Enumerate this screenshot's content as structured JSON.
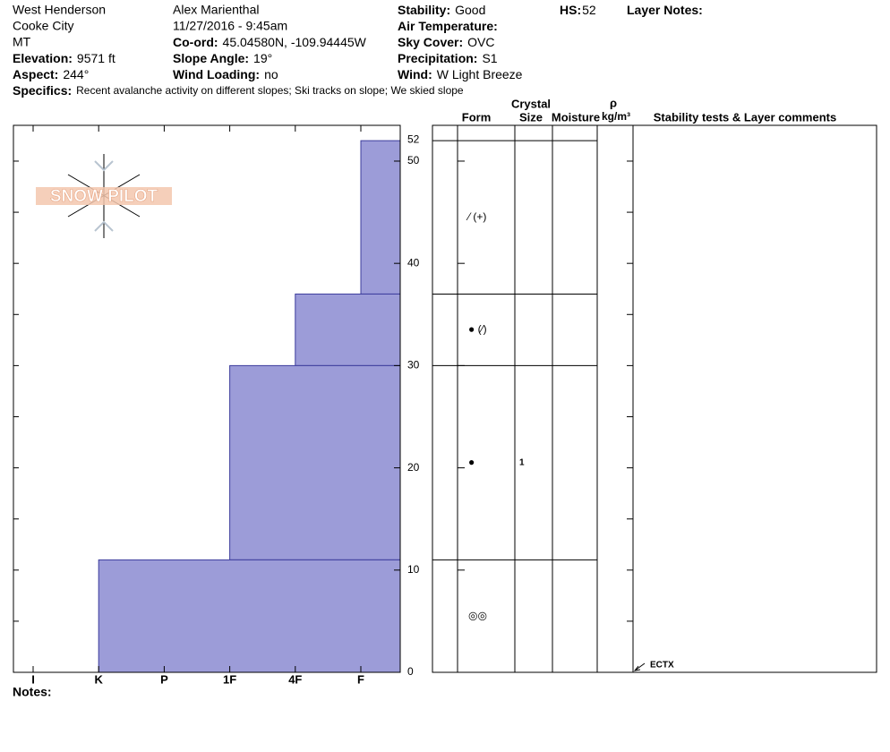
{
  "header": {
    "plain": [
      "West Henderson",
      "Cooke City",
      "MT",
      "Alex Marienthal",
      "11/27/2016 - 9:45am"
    ],
    "fields": [
      {
        "label": "Elevation:",
        "value": "9571 ft"
      },
      {
        "label": "Aspect:",
        "value": "244°"
      },
      {
        "label": "Co-ord:",
        "value": "45.04580N, -109.94445W"
      },
      {
        "label": "Slope Angle:",
        "value": "19°"
      },
      {
        "label": "Wind Loading:",
        "value": "no"
      },
      {
        "label": "Stability:",
        "value": "Good"
      },
      {
        "label": "Air Temperature:"
      },
      {
        "label": "Sky Cover:",
        "value": "OVC"
      },
      {
        "label": "Precipitation:",
        "value": "S1"
      },
      {
        "label": "Wind:",
        "value": "W Light Breeze"
      },
      {
        "label": "HS:",
        "value": "52"
      },
      {
        "label": "Layer Notes:"
      }
    ],
    "specifics": {
      "label": "Specifics:",
      "value": "Recent avalanche activity on different slopes;  Ski tracks on slope;  We skied slope"
    }
  },
  "logo": "SNOW PILOT",
  "notes_label": "Notes:",
  "columns": {
    "crystal": "Crystal",
    "form": "Form",
    "size": "Size",
    "moisture": "Moisture",
    "rho": "ρ",
    "density_unit": "kg/m³",
    "comments": "Stability tests & Layer comments"
  },
  "chart_data": {
    "type": "snow-profile",
    "categories": [
      "I",
      "K",
      "P",
      "1F",
      "4F",
      "F"
    ],
    "ylim": [
      0,
      53.5
    ],
    "yticks": [
      0,
      10,
      20,
      30,
      40,
      50
    ],
    "minor_yticks": [
      5,
      15,
      25,
      35,
      45
    ],
    "hs": 52,
    "color": "#9c9cd8",
    "layers": [
      {
        "top": 52,
        "bottom": 37,
        "hardness": "F",
        "form": "⁄ (+)"
      },
      {
        "top": 37,
        "bottom": 30,
        "hardness": "4F",
        "form": "● (⁄)"
      },
      {
        "top": 30,
        "bottom": 11,
        "hardness": "1F",
        "form": "●",
        "size": "1"
      },
      {
        "top": 11,
        "bottom": 0,
        "hardness": "K",
        "form": "◎◎"
      }
    ],
    "tests": [
      {
        "label": "ECTX",
        "height": 0
      }
    ]
  }
}
